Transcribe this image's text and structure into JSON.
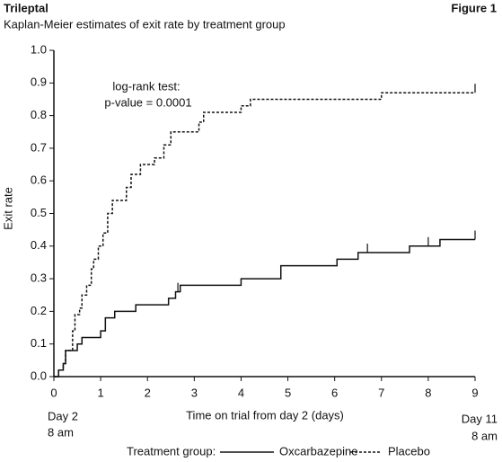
{
  "chart_data": {
    "type": "step",
    "header": "Trileptal",
    "figure_label": "Figure 1",
    "title": "Kaplan-Meier estimates of exit rate by treatment group",
    "xlabel": "Time on trial from day 2 (days)",
    "ylabel": "Exit rate",
    "annotations": [
      "log-rank test:",
      "p-value = 0.0001"
    ],
    "axis_notes": {
      "start": [
        "Day 2",
        "8 am"
      ],
      "end": [
        "Day 11",
        "8 am"
      ]
    },
    "legend_title": "Treatment group:",
    "xlim": [
      0,
      9
    ],
    "ylim": [
      0,
      1
    ],
    "xticks": [
      0,
      1,
      2,
      3,
      4,
      5,
      6,
      7,
      8,
      9
    ],
    "yticks": [
      {
        "value": 0,
        "label": "0.0"
      },
      {
        "value": 0.1,
        "label": "0.1"
      },
      {
        "value": 0.2,
        "label": "0.2"
      },
      {
        "value": 0.3,
        "label": "0.3"
      },
      {
        "value": 0.4,
        "label": "0.4"
      },
      {
        "value": 0.5,
        "label": "0.5"
      },
      {
        "value": 0.6,
        "label": "0.6"
      },
      {
        "value": 0.7,
        "label": "0.7"
      },
      {
        "value": 0.8,
        "label": "0.8"
      },
      {
        "value": 0.9,
        "label": "0.9"
      },
      {
        "value": 1,
        "label": "1.0"
      }
    ],
    "grid": false,
    "series": [
      {
        "name": "Oxcarbazepine",
        "color": "#111111",
        "dash": false,
        "x": [
          0,
          0.1,
          0.2,
          0.25,
          0.5,
          0.6,
          1.0,
          1.1,
          1.3,
          1.75,
          2.45,
          2.6,
          2.7,
          4.0,
          4.85,
          6.05,
          6.5,
          7.6,
          8.25,
          9.0
        ],
        "values": [
          0,
          0.02,
          0.04,
          0.08,
          0.1,
          0.12,
          0.14,
          0.18,
          0.2,
          0.22,
          0.24,
          0.26,
          0.28,
          0.3,
          0.34,
          0.36,
          0.38,
          0.4,
          0.42,
          0.42
        ],
        "censored_x": [
          2.65,
          6.7,
          8.0,
          9.0
        ]
      },
      {
        "name": "Placebo",
        "color": "#111111",
        "dash": true,
        "x": [
          0,
          0.1,
          0.2,
          0.25,
          0.4,
          0.45,
          0.55,
          0.6,
          0.7,
          0.8,
          0.85,
          0.95,
          1.05,
          1.15,
          1.25,
          1.55,
          1.65,
          1.85,
          2.15,
          2.35,
          2.5,
          3.1,
          3.2,
          4.0,
          4.2,
          7.0,
          9.0
        ],
        "values": [
          0,
          0.02,
          0.04,
          0.08,
          0.14,
          0.19,
          0.21,
          0.25,
          0.28,
          0.33,
          0.36,
          0.4,
          0.44,
          0.5,
          0.54,
          0.58,
          0.62,
          0.65,
          0.67,
          0.71,
          0.75,
          0.78,
          0.81,
          0.83,
          0.85,
          0.87,
          0.87
        ],
        "censored_x": [
          9.0
        ]
      }
    ]
  }
}
